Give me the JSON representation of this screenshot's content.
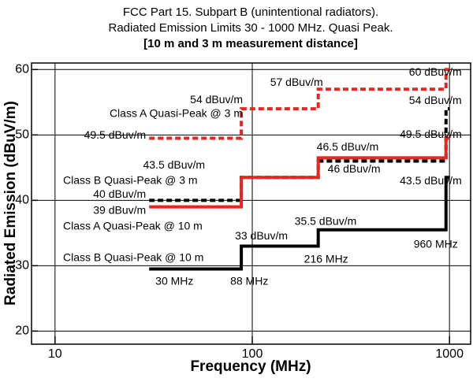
{
  "chart_data": {
    "type": "step",
    "title": [
      "FCC Part 15. Subpart B (unintentional radiators).",
      "Radiated Emission Limits 30 - 1000 MHz. Quasi Peak."
    ],
    "subtitle": "[10 m and 3 m measurement distance]",
    "x_label": "Frequency (MHz)",
    "y_label": "Radiated Emission (dBuV/m)",
    "x_scale": "log",
    "xlim": [
      7.6,
      1280
    ],
    "xticks": [
      10,
      100,
      1000
    ],
    "ylim": [
      18,
      61
    ],
    "yticks": [
      20,
      30,
      40,
      50,
      60
    ],
    "grid": true,
    "series": [
      {
        "name": "Class A Quasi-Peak @ 3 m",
        "color": "#e8251f",
        "linestyle": "dashed",
        "x": [
          30,
          88,
          216,
          960,
          1000
        ],
        "values": [
          49.5,
          54,
          57,
          60,
          60
        ],
        "value_labels": [
          "49.5 dBuv/m",
          "54 dBuv/m",
          "57 dBuv/m",
          "60 dBuv/m",
          null
        ]
      },
      {
        "name": "Class B Quasi-Peak @ 3 m",
        "color": "#000000",
        "linestyle": "dashed",
        "x": [
          30,
          88,
          216,
          960,
          1000
        ],
        "values": [
          40,
          43.5,
          46,
          54,
          54
        ],
        "value_labels": [
          "40 dBuv/m",
          "43.5 dBuv/m",
          "46 dBuv/m",
          "54 dBuv/m",
          null
        ]
      },
      {
        "name": "Class A Quasi-Peak @ 10 m",
        "color": "#e8251f",
        "linestyle": "solid",
        "x": [
          30,
          88,
          216,
          960,
          1000
        ],
        "values": [
          39,
          43.5,
          46.5,
          49.5,
          49.5
        ],
        "value_labels": [
          "39 dBuv/m",
          null,
          "46.5 dBuv/m",
          "49.5 dBuv/m",
          null
        ]
      },
      {
        "name": "Class B Quasi-Peak @ 10 m",
        "color": "#000000",
        "linestyle": "solid",
        "x": [
          30,
          88,
          216,
          960,
          1000
        ],
        "values": [
          29.5,
          33,
          35.5,
          43.5,
          43.5
        ],
        "value_labels": [
          null,
          "33 dBuv/m",
          "35.5 dBuv/m",
          "43.5 dBuv/m",
          null
        ]
      }
    ],
    "annotations": [
      {
        "text": "30 MHz",
        "x": 30
      },
      {
        "text": "88 MHz",
        "x": 88
      },
      {
        "text": "216 MHz",
        "x": 216
      },
      {
        "text": "960 MHz",
        "x": 960
      }
    ]
  }
}
